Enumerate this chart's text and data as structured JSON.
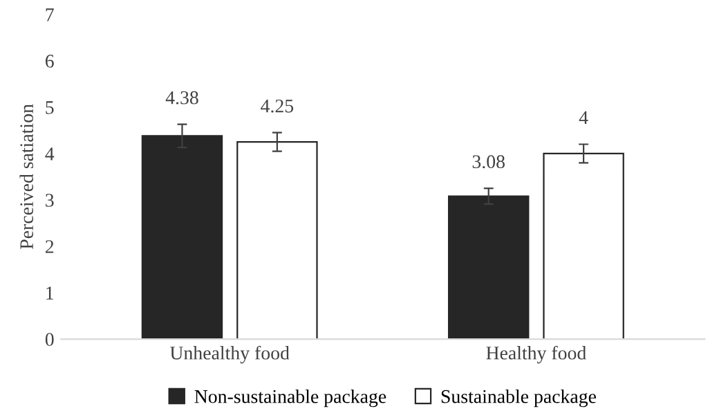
{
  "chart_data": {
    "type": "bar",
    "ylabel": "Perceived satiation",
    "categories": [
      "Unhealthy food",
      "Healthy food"
    ],
    "series": [
      {
        "name": "Non-sustainable package",
        "color": "#262626",
        "values": [
          4.38,
          3.08
        ],
        "errors": [
          0.25,
          0.17
        ]
      },
      {
        "name": "Sustainable package",
        "color": "#ffffff",
        "values": [
          4.25,
          4
        ],
        "errors": [
          0.2,
          0.2
        ]
      }
    ],
    "ylim": [
      0,
      7
    ],
    "yticks": [
      0,
      1,
      2,
      3,
      4,
      5,
      6,
      7
    ],
    "grid": false,
    "legend": "bottom",
    "data_labels": true
  }
}
